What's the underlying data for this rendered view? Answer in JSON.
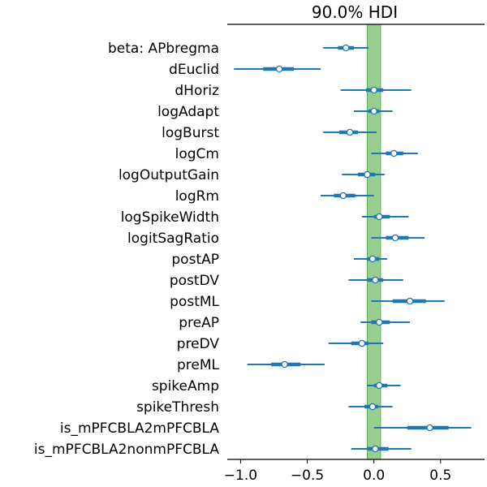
{
  "chart_data": {
    "type": "forest",
    "title": "90.0% HDI",
    "xlim": [
      -1.1,
      0.83
    ],
    "xticks": [
      -1.0,
      -0.5,
      0.0,
      0.5
    ],
    "xtick_labels": [
      "−1.0",
      "−0.5",
      "0.0",
      "0.5"
    ],
    "rope": [
      -0.05,
      0.05
    ],
    "colors": {
      "interval": "#1f77b4",
      "rope": "#98cf90",
      "rope_edge": "#5fb15a"
    },
    "rows": [
      {
        "label": "beta: APbregma",
        "mean": -0.21,
        "hdi_low": -0.38,
        "hdi_high": -0.04,
        "iqr_low": -0.27,
        "iqr_high": -0.15
      },
      {
        "label": "dEuclid",
        "mean": -0.71,
        "hdi_low": -1.05,
        "hdi_high": -0.4,
        "iqr_low": -0.83,
        "iqr_high": -0.6
      },
      {
        "label": "dHoriz",
        "mean": 0.0,
        "hdi_low": -0.25,
        "hdi_high": 0.28,
        "iqr_low": -0.06,
        "iqr_high": 0.07
      },
      {
        "label": "logAdapt",
        "mean": 0.0,
        "hdi_low": -0.15,
        "hdi_high": 0.14,
        "iqr_low": -0.04,
        "iqr_high": 0.04
      },
      {
        "label": "logBurst",
        "mean": -0.18,
        "hdi_low": -0.38,
        "hdi_high": 0.02,
        "iqr_low": -0.26,
        "iqr_high": -0.12
      },
      {
        "label": "logCm",
        "mean": 0.15,
        "hdi_low": -0.02,
        "hdi_high": 0.33,
        "iqr_low": 0.09,
        "iqr_high": 0.22
      },
      {
        "label": "logOutputGain",
        "mean": -0.05,
        "hdi_low": -0.24,
        "hdi_high": 0.08,
        "iqr_low": -0.12,
        "iqr_high": 0.01
      },
      {
        "label": "logRm",
        "mean": -0.23,
        "hdi_low": -0.4,
        "hdi_high": 0.0,
        "iqr_low": -0.3,
        "iqr_high": -0.14
      },
      {
        "label": "logSpikeWidth",
        "mean": 0.04,
        "hdi_low": -0.09,
        "hdi_high": 0.26,
        "iqr_low": 0.0,
        "iqr_high": 0.12
      },
      {
        "label": "logitSagRatio",
        "mean": 0.16,
        "hdi_low": -0.02,
        "hdi_high": 0.38,
        "iqr_low": 0.09,
        "iqr_high": 0.26
      },
      {
        "label": "postAP",
        "mean": -0.01,
        "hdi_low": -0.15,
        "hdi_high": 0.1,
        "iqr_low": -0.05,
        "iqr_high": 0.04
      },
      {
        "label": "postDV",
        "mean": 0.01,
        "hdi_low": -0.19,
        "hdi_high": 0.22,
        "iqr_low": -0.05,
        "iqr_high": 0.07
      },
      {
        "label": "postML",
        "mean": 0.27,
        "hdi_low": -0.02,
        "hdi_high": 0.53,
        "iqr_low": 0.14,
        "iqr_high": 0.39
      },
      {
        "label": "preAP",
        "mean": 0.04,
        "hdi_low": -0.1,
        "hdi_high": 0.27,
        "iqr_low": -0.02,
        "iqr_high": 0.12
      },
      {
        "label": "preDV",
        "mean": -0.09,
        "hdi_low": -0.34,
        "hdi_high": 0.07,
        "iqr_low": -0.17,
        "iqr_high": -0.04
      },
      {
        "label": "preML",
        "mean": -0.67,
        "hdi_low": -0.95,
        "hdi_high": -0.37,
        "iqr_low": -0.77,
        "iqr_high": -0.55
      },
      {
        "label": "spikeAmp",
        "mean": 0.04,
        "hdi_low": -0.05,
        "hdi_high": 0.2,
        "iqr_low": 0.0,
        "iqr_high": 0.1
      },
      {
        "label": "spikeThresh",
        "mean": -0.01,
        "hdi_low": -0.19,
        "hdi_high": 0.14,
        "iqr_low": -0.07,
        "iqr_high": 0.03
      },
      {
        "label": "is_mPFCBLA2mPFCBLA",
        "mean": 0.42,
        "hdi_low": 0.0,
        "hdi_high": 0.73,
        "iqr_low": 0.25,
        "iqr_high": 0.56
      },
      {
        "label": "is_mPFCBLA2nonmPFCBLA",
        "mean": 0.01,
        "hdi_low": -0.17,
        "hdi_high": 0.28,
        "iqr_low": -0.05,
        "iqr_high": 0.11
      }
    ]
  }
}
